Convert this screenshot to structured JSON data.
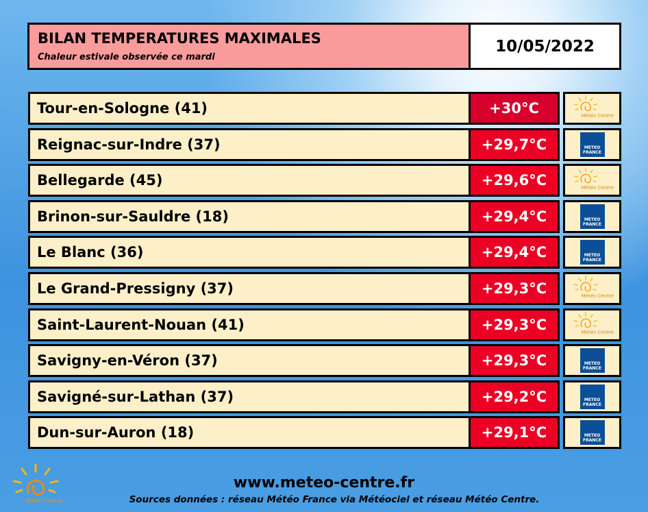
{
  "header": {
    "title": "BILAN TEMPERATURES MAXIMALES",
    "subtitle": "Chaleur estivale observée ce mardi",
    "date": "10/05/2022"
  },
  "rows": [
    {
      "station": "Tour-en-Sologne (41)",
      "temp": "+30°C",
      "source": "Météo Centre",
      "top": true
    },
    {
      "station": "Reignac-sur-Indre (37)",
      "temp": "+29,7°C",
      "source": "METEO FRANCE"
    },
    {
      "station": "Bellegarde (45)",
      "temp": "+29,6°C",
      "source": "Météo Centre"
    },
    {
      "station": "Brinon-sur-Sauldre (18)",
      "temp": "+29,4°C",
      "source": "METEO FRANCE"
    },
    {
      "station": "Le Blanc (36)",
      "temp": "+29,4°C",
      "source": "METEO FRANCE"
    },
    {
      "station": "Le Grand-Pressigny (37)",
      "temp": "+29,3°C",
      "source": "Météo Centre"
    },
    {
      "station": "Saint-Laurent-Nouan (41)",
      "temp": "+29,3°C",
      "source": "Météo Centre"
    },
    {
      "station": "Savigny-en-Véron (37)",
      "temp": "+29,3°C",
      "source": "METEO FRANCE"
    },
    {
      "station": "Savigné-sur-Lathan (37)",
      "temp": "+29,2°C",
      "source": "METEO FRANCE"
    },
    {
      "station": "Dun-sur-Auron (18)",
      "temp": "+29,1°C",
      "source": "METEO FRANCE"
    }
  ],
  "footer": {
    "url": "www.meteo-centre.fr",
    "sources": "Sources données : réseau Météo France via Météociel et réseau Météo Centre.",
    "logo": "Météo Centre"
  }
}
